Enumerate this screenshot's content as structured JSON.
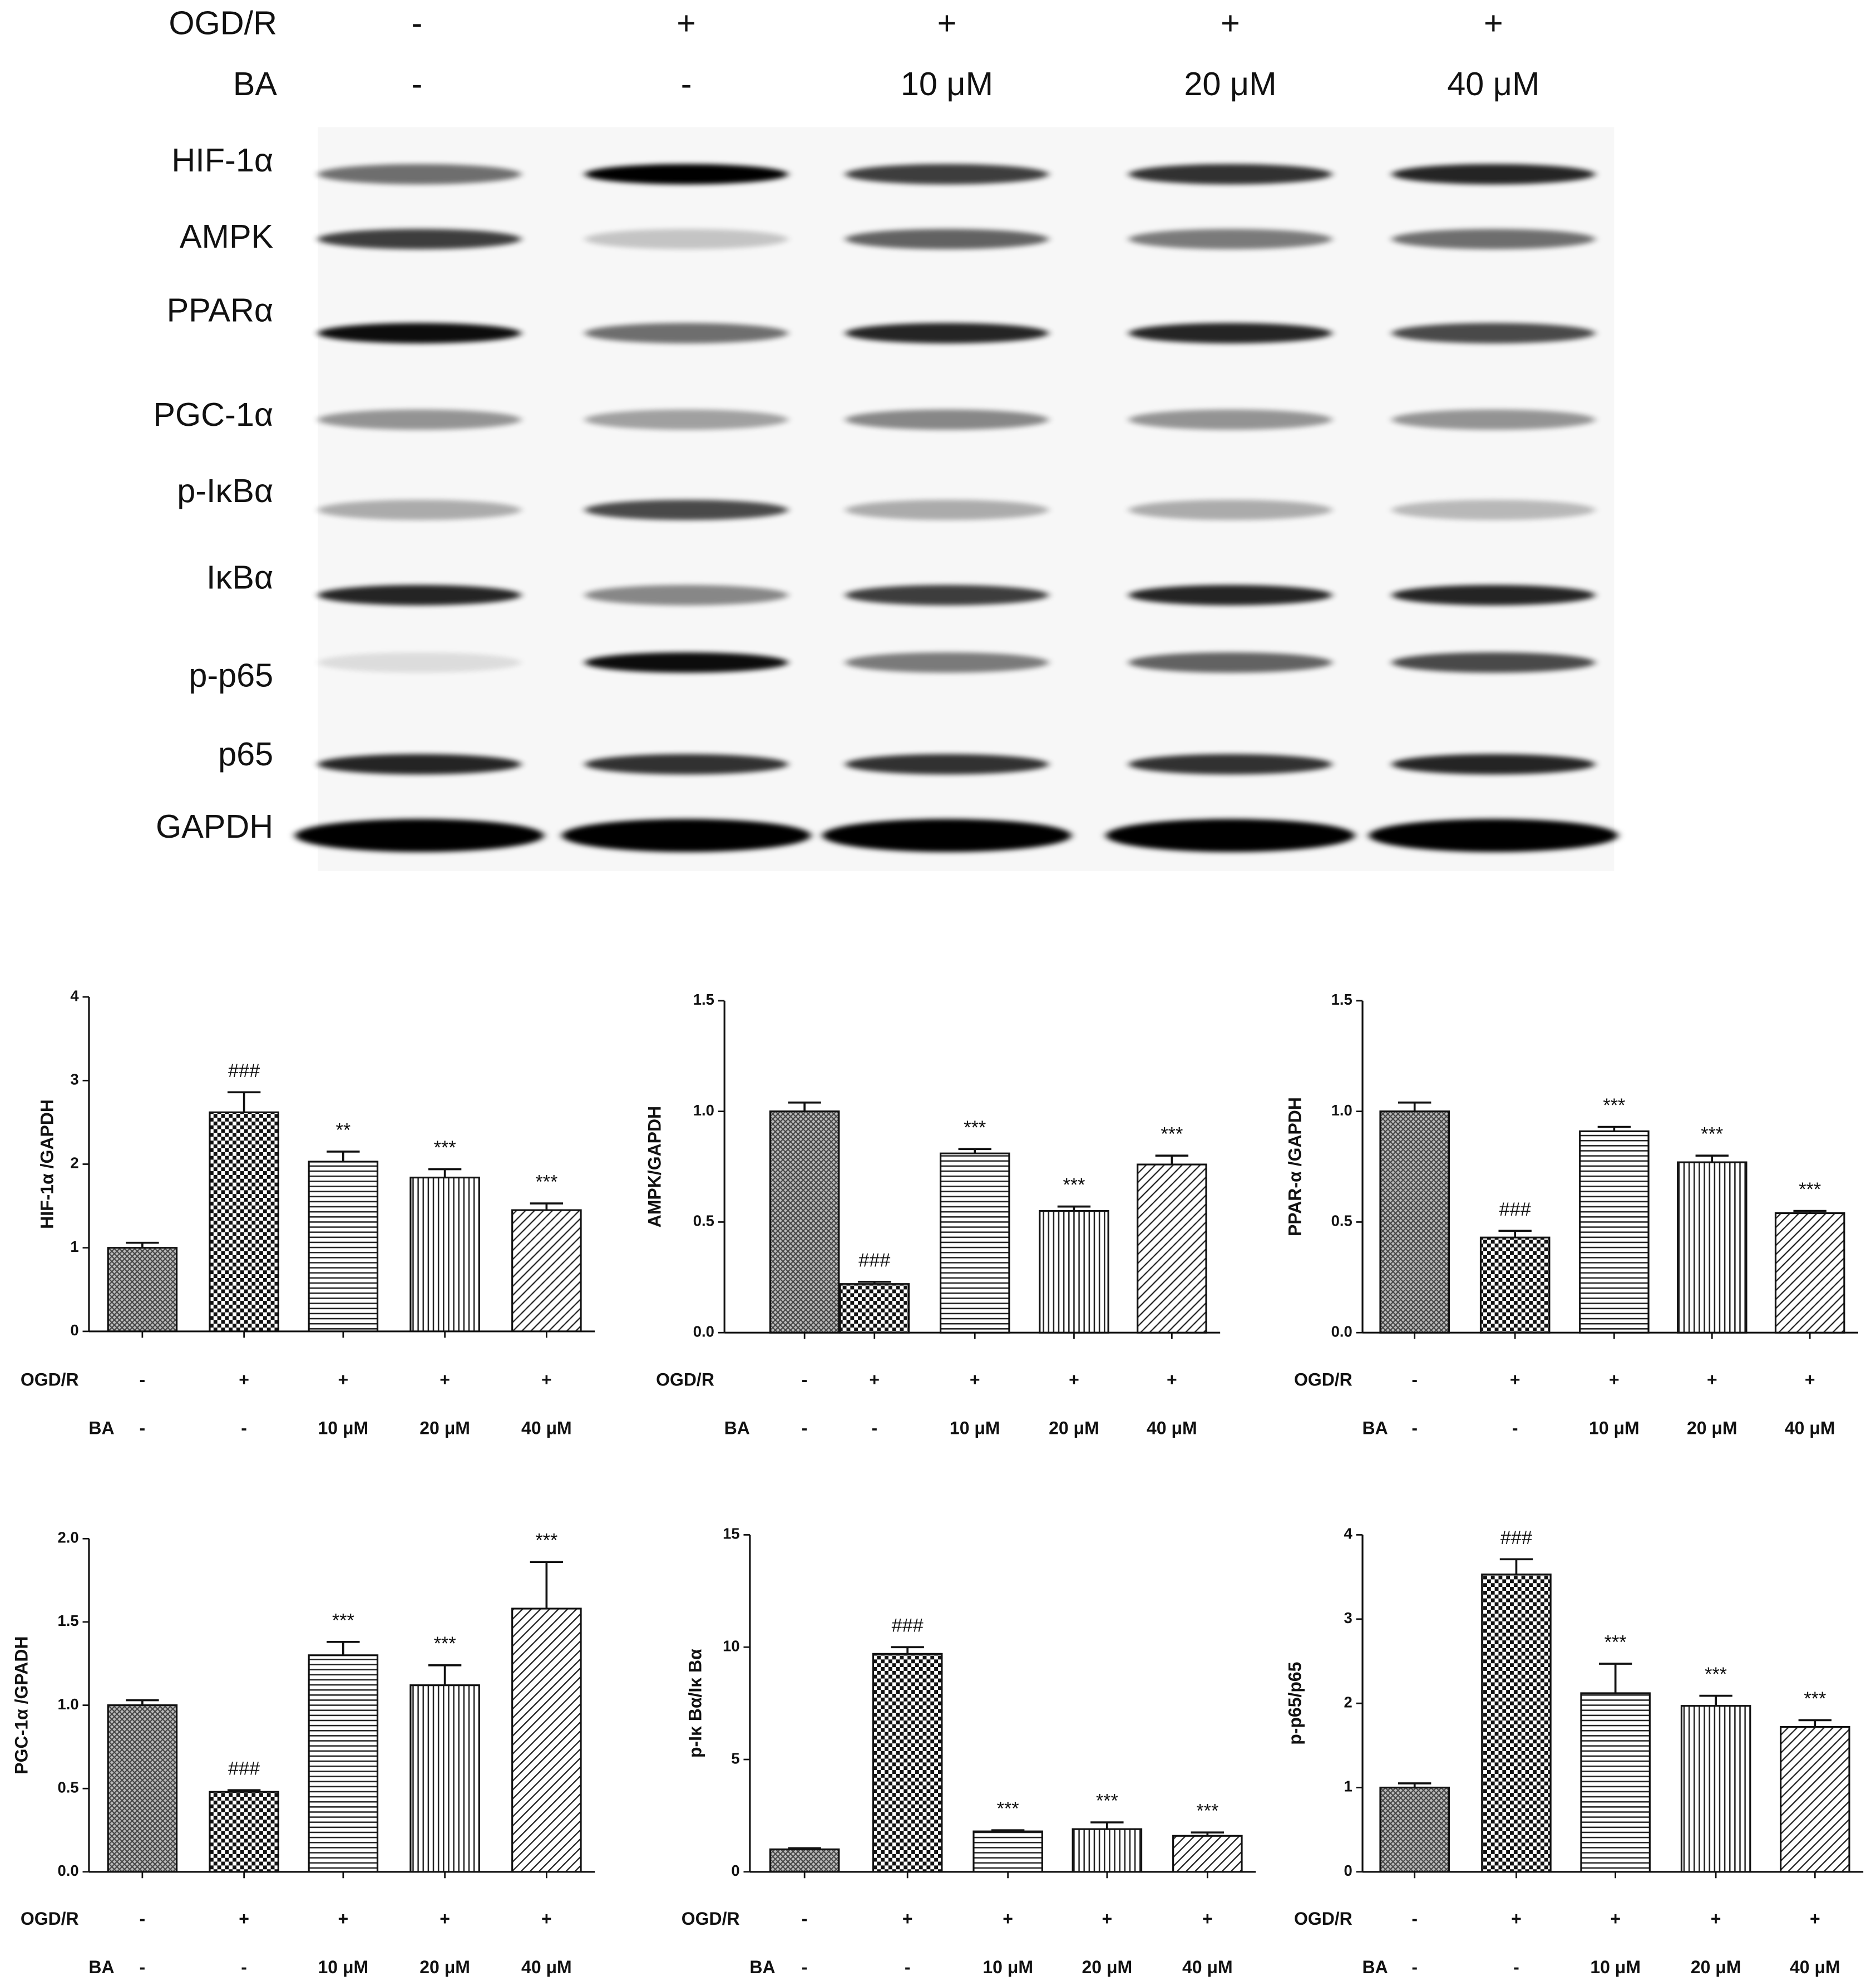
{
  "blot": {
    "conditions": [
      {
        "name": "OGD/R",
        "values": [
          "-",
          "+",
          "+",
          "+",
          "+"
        ]
      },
      {
        "name": "BA",
        "values": [
          "-",
          "-",
          "10 μM",
          "20 μM",
          "40 μM"
        ]
      }
    ],
    "bands": [
      "HIF-1α",
      "AMPK",
      "PPARα",
      "PGC-1α",
      "p-IκBα",
      "IκBα",
      "p-p65",
      "p65",
      "GAPDH"
    ]
  },
  "chart_data": [
    {
      "type": "bar",
      "y_label": "HIF-1α /GAPDH",
      "ylim": [
        0,
        4
      ],
      "yticks": [
        0,
        1,
        2,
        3,
        4
      ],
      "values": [
        1.0,
        2.62,
        2.03,
        1.84,
        1.45
      ],
      "errors": [
        0.06,
        0.24,
        0.12,
        0.1,
        0.08
      ],
      "annotations": [
        null,
        "###",
        "**",
        "***",
        "***"
      ],
      "patterns": [
        "crosshatch",
        "checker",
        "horizontal",
        "vertical",
        "diagonal"
      ],
      "treatments": [
        {
          "name": "OGD/R",
          "values": [
            "-",
            "+",
            "+",
            "+",
            "+"
          ]
        },
        {
          "name": "BA",
          "values": [
            "-",
            "-",
            "10 μM",
            "20 μM",
            "40 μM"
          ]
        }
      ]
    },
    {
      "type": "bar",
      "y_label": "AMPK/GAPDH",
      "ylim": [
        0,
        1.5
      ],
      "yticks": [
        {
          "value": 0,
          "label": "0.0"
        },
        0.5,
        {
          "value": 1,
          "label": "1.0"
        },
        1.5
      ],
      "values": [
        1.0,
        0.22,
        0.81,
        0.55,
        0.76
      ],
      "errors": [
        0.04,
        0.01,
        0.02,
        0.02,
        0.04
      ],
      "annotations": [
        null,
        "###",
        "***",
        "***",
        "***"
      ],
      "patterns": [
        "crosshatch",
        "checker",
        "horizontal",
        "vertical",
        "diagonal"
      ],
      "treatments": [
        {
          "name": "OGD/R",
          "values": [
            "-",
            "+",
            "+",
            "+",
            "+"
          ]
        },
        {
          "name": "BA",
          "values": [
            "-",
            "-",
            "10 μM",
            "20 μM",
            "40 μM"
          ]
        }
      ]
    },
    {
      "type": "bar",
      "y_label": "PPAR-α /GAPDH",
      "ylim": [
        0,
        1.5
      ],
      "yticks": [
        {
          "value": 0,
          "label": "0.0"
        },
        0.5,
        {
          "value": 1,
          "label": "1.0"
        },
        1.5
      ],
      "values": [
        1.0,
        0.43,
        0.91,
        0.77,
        0.54
      ],
      "errors": [
        0.04,
        0.03,
        0.02,
        0.03,
        0.01
      ],
      "annotations": [
        null,
        "###",
        "***",
        "***",
        "***"
      ],
      "patterns": [
        "crosshatch",
        "checker",
        "horizontal",
        "vertical",
        "diagonal"
      ],
      "treatments": [
        {
          "name": "OGD/R",
          "values": [
            "-",
            "+",
            "+",
            "+",
            "+"
          ]
        },
        {
          "name": "BA",
          "values": [
            "-",
            "-",
            "10 μM",
            "20 μM",
            "40 μM"
          ]
        }
      ]
    },
    {
      "type": "bar",
      "y_label": "PGC-1α /GPADH",
      "ylim": [
        0,
        2
      ],
      "yticks": [
        {
          "value": 0,
          "label": "0.0"
        },
        0.5,
        {
          "value": 1,
          "label": "1.0"
        },
        1.5,
        {
          "value": 2,
          "label": "2.0"
        }
      ],
      "values": [
        1.0,
        0.48,
        1.3,
        1.12,
        1.58
      ],
      "errors": [
        0.03,
        0.01,
        0.08,
        0.12,
        0.28
      ],
      "annotations": [
        null,
        "###",
        "***",
        "***",
        "***"
      ],
      "patterns": [
        "crosshatch",
        "checker",
        "horizontal",
        "vertical",
        "diagonal"
      ],
      "treatments": [
        {
          "name": "OGD/R",
          "values": [
            "-",
            "+",
            "+",
            "+",
            "+"
          ]
        },
        {
          "name": "BA",
          "values": [
            "-",
            "-",
            "10 μM",
            "20 μM",
            "40 μM"
          ]
        }
      ]
    },
    {
      "type": "bar",
      "y_label": "p-Iκ Bα/Iκ Bα",
      "ylim": [
        0,
        15
      ],
      "yticks": [
        0,
        5,
        10,
        15
      ],
      "values": [
        1.0,
        9.7,
        1.8,
        1.9,
        1.6
      ],
      "errors": [
        0.05,
        0.3,
        0.05,
        0.3,
        0.15
      ],
      "annotations": [
        null,
        "###",
        "***",
        "***",
        "***"
      ],
      "patterns": [
        "crosshatch",
        "checker",
        "horizontal",
        "vertical",
        "diagonal"
      ],
      "treatments": [
        {
          "name": "OGD/R",
          "values": [
            "-",
            "+",
            "+",
            "+",
            "+"
          ]
        },
        {
          "name": "BA",
          "values": [
            "-",
            "-",
            "10 μM",
            "20 μM",
            "40 μM"
          ]
        }
      ]
    },
    {
      "type": "bar",
      "y_label": "p-p65/p65",
      "ylim": [
        0,
        4
      ],
      "yticks": [
        0,
        1,
        2,
        3,
        4
      ],
      "values": [
        1.0,
        3.53,
        2.12,
        1.97,
        1.72
      ],
      "errors": [
        0.05,
        0.18,
        0.35,
        0.12,
        0.08
      ],
      "annotations": [
        null,
        "###",
        "***",
        "***",
        "***"
      ],
      "patterns": [
        "crosshatch",
        "checker",
        "horizontal",
        "vertical",
        "diagonal"
      ],
      "treatments": [
        {
          "name": "OGD/R",
          "values": [
            "-",
            "+",
            "+",
            "+",
            "+"
          ]
        },
        {
          "name": "BA",
          "values": [
            "-",
            "-",
            "10 μM",
            "20 μM",
            "40 μM"
          ]
        }
      ]
    }
  ]
}
